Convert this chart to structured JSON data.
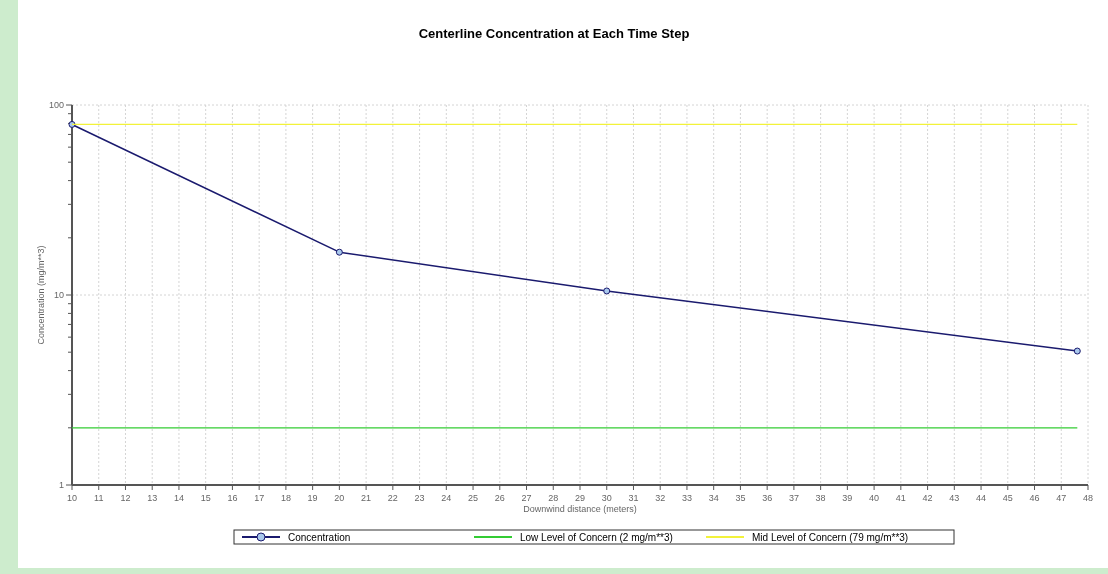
{
  "chart_data": {
    "type": "line",
    "title": "Centerline Concentration at Each Time Step",
    "xlabel": "Downwind distance (meters)",
    "ylabel": "Concentration (mg/m**3)",
    "x": [
      10,
      20,
      30,
      47.6
    ],
    "series": [
      {
        "name": "Concentration",
        "color": "#1a1a6e",
        "values": [
          79,
          16.8,
          10.5,
          5.07
        ],
        "marker": "circle"
      }
    ],
    "ref_lines": [
      {
        "axis": "y",
        "value": 2,
        "label": "Low Level of Concern (2 mg/m**3)",
        "color": "#33cc33"
      },
      {
        "axis": "y",
        "value": 79,
        "label": "Mid Level of Concern (79 mg/m**3)",
        "color": "#f2f23a"
      }
    ],
    "log": "y",
    "xlim": [
      10,
      48
    ],
    "xticks": [
      10,
      11,
      12,
      13,
      14,
      15,
      16,
      17,
      18,
      19,
      20,
      21,
      22,
      23,
      24,
      25,
      26,
      27,
      28,
      29,
      30,
      31,
      32,
      33,
      34,
      35,
      36,
      37,
      38,
      39,
      40,
      41,
      42,
      43,
      44,
      45,
      46,
      47,
      48
    ],
    "ylim": [
      1,
      100
    ],
    "yticks": [
      1,
      {
        "value": 2,
        "label": null
      },
      {
        "value": 3,
        "label": null
      },
      {
        "value": 4,
        "label": null
      },
      {
        "value": 5,
        "label": null
      },
      {
        "value": 6,
        "label": null
      },
      {
        "value": 7,
        "label": null
      },
      {
        "value": 8,
        "label": null
      },
      {
        "value": 9,
        "label": null
      },
      10,
      {
        "value": 20,
        "label": null
      },
      {
        "value": 30,
        "label": null
      },
      {
        "value": 40,
        "label": null
      },
      {
        "value": 50,
        "label": null
      },
      {
        "value": 60,
        "label": null
      },
      {
        "value": 70,
        "label": null
      },
      {
        "value": 80,
        "label": null
      },
      {
        "value": 90,
        "label": null
      },
      100
    ],
    "grid": true,
    "legend": "bottom"
  }
}
